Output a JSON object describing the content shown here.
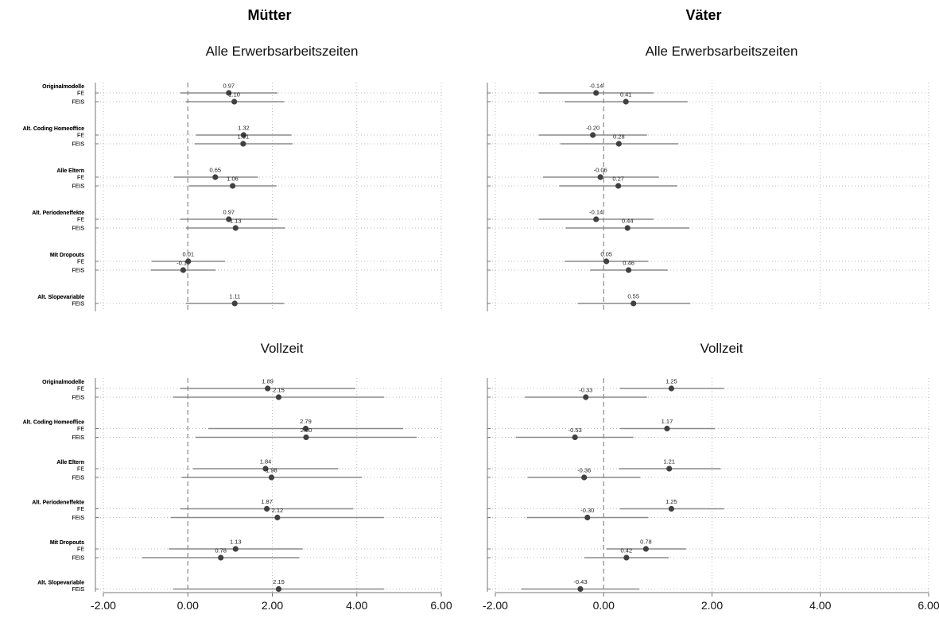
{
  "column_titles": [
    "Mütter",
    "Väter"
  ],
  "colors": {
    "ci": "#8a8a8a",
    "point": "#404040",
    "grid": "#bdbdbd",
    "zero": "#9a9a9a",
    "axis": "#777777"
  },
  "chart_data": [
    {
      "type": "dot-whisker",
      "column": "Mütter",
      "title": "Alle Erwerbsarbeitszeiten",
      "xlim": [
        -2,
        6
      ],
      "xticks": [
        "-2.00",
        "0.00",
        "2.00",
        "4.00",
        "6.00"
      ],
      "show_xticks": false,
      "groups": [
        {
          "name": "Originalmodelle",
          "rows": [
            {
              "label": "FE",
              "value": 0.97,
              "value_label": "0.97",
              "ci": [
                -0.18,
                2.12
              ]
            },
            {
              "label": "FEIS",
              "value": 1.1,
              "value_label": "1.10",
              "ci": [
                -0.05,
                2.28
              ]
            }
          ]
        },
        {
          "name": "Alt. Coding Homeoffice",
          "rows": [
            {
              "label": "FE",
              "value": 1.32,
              "value_label": "1.32",
              "ci": [
                0.19,
                2.45
              ]
            },
            {
              "label": "FEIS",
              "value": 1.31,
              "value_label": "1.31",
              "ci": [
                0.16,
                2.48
              ]
            }
          ]
        },
        {
          "name": "Alle Eltern",
          "rows": [
            {
              "label": "FE",
              "value": 0.65,
              "value_label": "0.65",
              "ci": [
                -0.33,
                1.66
              ]
            },
            {
              "label": "FEIS",
              "value": 1.06,
              "value_label": "1.06",
              "ci": [
                0.02,
                2.1
              ]
            }
          ]
        },
        {
          "name": "Alt. Periodeneffekte",
          "rows": [
            {
              "label": "FE",
              "value": 0.97,
              "value_label": "0.97",
              "ci": [
                -0.18,
                2.12
              ]
            },
            {
              "label": "FEIS",
              "value": 1.13,
              "value_label": "1.13",
              "ci": [
                -0.05,
                2.3
              ]
            }
          ]
        },
        {
          "name": "Mit Dropouts",
          "rows": [
            {
              "label": "FE",
              "value": 0.01,
              "value_label": "0.01",
              "ci": [
                -0.85,
                0.88
              ]
            },
            {
              "label": "FEIS",
              "value": -0.11,
              "value_label": "-0.11",
              "ci": [
                -0.88,
                0.66
              ]
            }
          ]
        },
        {
          "name": "Alt. Slopevariable",
          "rows": [
            {
              "label": "FEIS",
              "value": 1.11,
              "value_label": "1.11",
              "ci": [
                -0.05,
                2.28
              ]
            }
          ]
        }
      ]
    },
    {
      "type": "dot-whisker",
      "column": "Väter",
      "title": "Alle Erwerbsarbeitszeiten",
      "xlim": [
        -2,
        6
      ],
      "xticks": [
        "-2.00",
        "0.00",
        "2.00",
        "4.00",
        "6.00"
      ],
      "show_xticks": false,
      "groups": [
        {
          "name": "Originalmodelle",
          "rows": [
            {
              "label": "FE",
              "value": -0.14,
              "value_label": "-0.14",
              "ci": [
                -1.2,
                0.92
              ]
            },
            {
              "label": "FEIS",
              "value": 0.41,
              "value_label": "0.41",
              "ci": [
                -0.72,
                1.55
              ]
            }
          ]
        },
        {
          "name": "Alt. Coding Homeoffice",
          "rows": [
            {
              "label": "FE",
              "value": -0.2,
              "value_label": "-0.20",
              "ci": [
                -1.2,
                0.8
              ]
            },
            {
              "label": "FEIS",
              "value": 0.28,
              "value_label": "0.28",
              "ci": [
                -0.8,
                1.38
              ]
            }
          ]
        },
        {
          "name": "Alle Eltern",
          "rows": [
            {
              "label": "FE",
              "value": -0.06,
              "value_label": "-0.06",
              "ci": [
                -1.12,
                1.02
              ]
            },
            {
              "label": "FEIS",
              "value": 0.27,
              "value_label": "0.27",
              "ci": [
                -0.82,
                1.36
              ]
            }
          ]
        },
        {
          "name": "Alt. Periodeneffekte",
          "rows": [
            {
              "label": "FE",
              "value": -0.14,
              "value_label": "-0.14",
              "ci": [
                -1.2,
                0.92
              ]
            },
            {
              "label": "FEIS",
              "value": 0.44,
              "value_label": "0.44",
              "ci": [
                -0.7,
                1.58
              ]
            }
          ]
        },
        {
          "name": "Mit Dropouts",
          "rows": [
            {
              "label": "FE",
              "value": 0.05,
              "value_label": "0.05",
              "ci": [
                -0.72,
                0.82
              ]
            },
            {
              "label": "FEIS",
              "value": 0.46,
              "value_label": "0.46",
              "ci": [
                -0.25,
                1.18
              ]
            }
          ]
        },
        {
          "name": "Alt. Slopevariable",
          "rows": [
            {
              "label": "FEIS",
              "value": 0.55,
              "value_label": "0.55",
              "ci": [
                -0.48,
                1.6
              ]
            }
          ]
        }
      ]
    },
    {
      "type": "dot-whisker",
      "column": "Mütter",
      "title": "Vollzeit",
      "xlim": [
        -2,
        6
      ],
      "xticks": [
        "-2.00",
        "0.00",
        "2.00",
        "4.00",
        "6.00"
      ],
      "show_xticks": true,
      "groups": [
        {
          "name": "Originalmodelle",
          "rows": [
            {
              "label": "FE",
              "value": 1.89,
              "value_label": "1.89",
              "ci": [
                -0.18,
                3.96
              ]
            },
            {
              "label": "FEIS",
              "value": 2.15,
              "value_label": "2.15",
              "ci": [
                -0.35,
                4.65
              ]
            }
          ]
        },
        {
          "name": "Alt. Coding Homeoffice",
          "rows": [
            {
              "label": "FE",
              "value": 2.79,
              "value_label": "2.79",
              "ci": [
                0.48,
                5.1
              ]
            },
            {
              "label": "FEIS",
              "value": 2.8,
              "value_label": "2.80",
              "ci": [
                0.18,
                5.42
              ]
            }
          ]
        },
        {
          "name": "Alle Eltern",
          "rows": [
            {
              "label": "FE",
              "value": 1.84,
              "value_label": "1.84",
              "ci": [
                0.12,
                3.56
              ]
            },
            {
              "label": "FEIS",
              "value": 1.98,
              "value_label": "1.98",
              "ci": [
                -0.15,
                4.12
              ]
            }
          ]
        },
        {
          "name": "Alt. Periodeneffekte",
          "rows": [
            {
              "label": "FE",
              "value": 1.87,
              "value_label": "1.87",
              "ci": [
                -0.18,
                3.92
              ]
            },
            {
              "label": "FEIS",
              "value": 2.12,
              "value_label": "2.12",
              "ci": [
                -0.4,
                4.64
              ]
            }
          ]
        },
        {
          "name": "Mit Dropouts",
          "rows": [
            {
              "label": "FE",
              "value": 1.13,
              "value_label": "1.13",
              "ci": [
                -0.45,
                2.72
              ]
            },
            {
              "label": "FEIS",
              "value": 0.78,
              "value_label": "0.78",
              "ci": [
                -1.08,
                2.64
              ]
            }
          ]
        },
        {
          "name": "Alt. Slopevariable",
          "rows": [
            {
              "label": "FEIS",
              "value": 2.15,
              "value_label": "2.15",
              "ci": [
                -0.35,
                4.65
              ]
            }
          ]
        }
      ]
    },
    {
      "type": "dot-whisker",
      "column": "Väter",
      "title": "Vollzeit",
      "xlim": [
        -2,
        6
      ],
      "xticks": [
        "-2.00",
        "0.00",
        "2.00",
        "4.00",
        "6.00"
      ],
      "show_xticks": true,
      "groups": [
        {
          "name": "Originalmodelle",
          "rows": [
            {
              "label": "FE",
              "value": 1.25,
              "value_label": "1.25",
              "ci": [
                0.3,
                2.22
              ]
            },
            {
              "label": "FEIS",
              "value": -0.33,
              "value_label": "-0.33",
              "ci": [
                -1.45,
                0.8
              ]
            }
          ]
        },
        {
          "name": "Alt. Coding Homeoffice",
          "rows": [
            {
              "label": "FE",
              "value": 1.17,
              "value_label": "1.17",
              "ci": [
                0.3,
                2.05
              ]
            },
            {
              "label": "FEIS",
              "value": -0.53,
              "value_label": "-0.53",
              "ci": [
                -1.62,
                0.55
              ]
            }
          ]
        },
        {
          "name": "Alle Eltern",
          "rows": [
            {
              "label": "FE",
              "value": 1.21,
              "value_label": "1.21",
              "ci": [
                0.28,
                2.16
              ]
            },
            {
              "label": "FEIS",
              "value": -0.36,
              "value_label": "-0.36",
              "ci": [
                -1.4,
                0.68
              ]
            }
          ]
        },
        {
          "name": "Alt. Periodeneffekte",
          "rows": [
            {
              "label": "FE",
              "value": 1.25,
              "value_label": "1.25",
              "ci": [
                0.3,
                2.22
              ]
            },
            {
              "label": "FEIS",
              "value": -0.3,
              "value_label": "-0.30",
              "ci": [
                -1.42,
                0.82
              ]
            }
          ]
        },
        {
          "name": "Mit Dropouts",
          "rows": [
            {
              "label": "FE",
              "value": 0.78,
              "value_label": "0.78",
              "ci": [
                0.05,
                1.52
              ]
            },
            {
              "label": "FEIS",
              "value": 0.42,
              "value_label": "0.42",
              "ci": [
                -0.36,
                1.2
              ]
            }
          ]
        },
        {
          "name": "Alt. Slopevariable",
          "rows": [
            {
              "label": "FEIS",
              "value": -0.43,
              "value_label": "-0.43",
              "ci": [
                -1.52,
                0.66
              ]
            }
          ]
        }
      ]
    }
  ]
}
